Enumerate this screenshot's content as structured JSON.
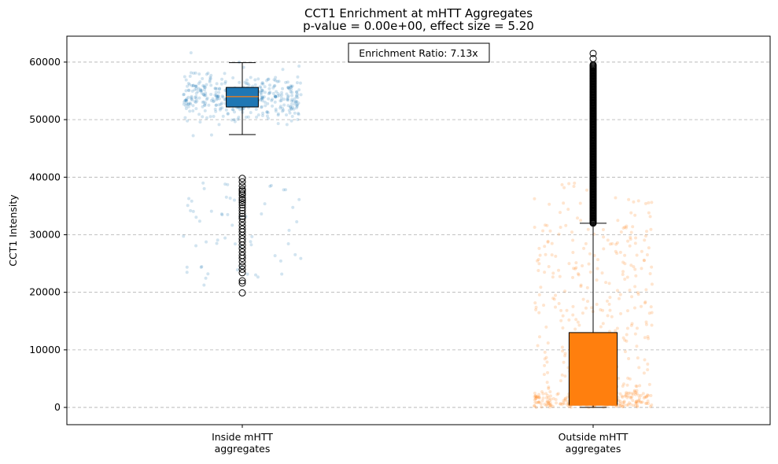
{
  "chart_data": {
    "type": "box",
    "title": "CCT1 Enrichment at mHTT Aggregates",
    "subtitle": "p-value = 0.00e+00, effect size = 5.20",
    "ylabel": "CCT1 Intensity",
    "xlabel": "",
    "ylim": [
      -3000,
      64500
    ],
    "yticks": [
      0,
      10000,
      20000,
      30000,
      40000,
      50000,
      60000
    ],
    "grid": "y-dashed",
    "annotation": "Enrichment Ratio: 7.13x",
    "categories": [
      "Inside mHTT\naggregates",
      "Outside mHTT\naggregates"
    ],
    "groups": [
      {
        "name": "Inside mHTT aggregates",
        "color": "#1f77b4",
        "whisker_low": 47400,
        "q1": 52200,
        "median": 54000,
        "q3": 55600,
        "whisker_high": 59900,
        "outliers": [
          39800,
          39200,
          38500,
          37900,
          37600,
          37200,
          36900,
          36400,
          36000,
          35600,
          35200,
          34700,
          34200,
          33700,
          33200,
          32800,
          32200,
          31600,
          31000,
          30500,
          29900,
          29300,
          28800,
          28200,
          27600,
          27000,
          26400,
          25900,
          25300,
          24600,
          24000,
          23400,
          22000,
          21600,
          19900
        ]
      },
      {
        "name": "Outside mHTT aggregates",
        "color": "#ff7f0e",
        "whisker_low": 0,
        "q1": 400,
        "median": 400,
        "q3": 13000,
        "whisker_high": 32000,
        "outlier_range": [
          32000,
          59600
        ],
        "outliers": [
          61500,
          60600,
          44000
        ]
      }
    ]
  }
}
